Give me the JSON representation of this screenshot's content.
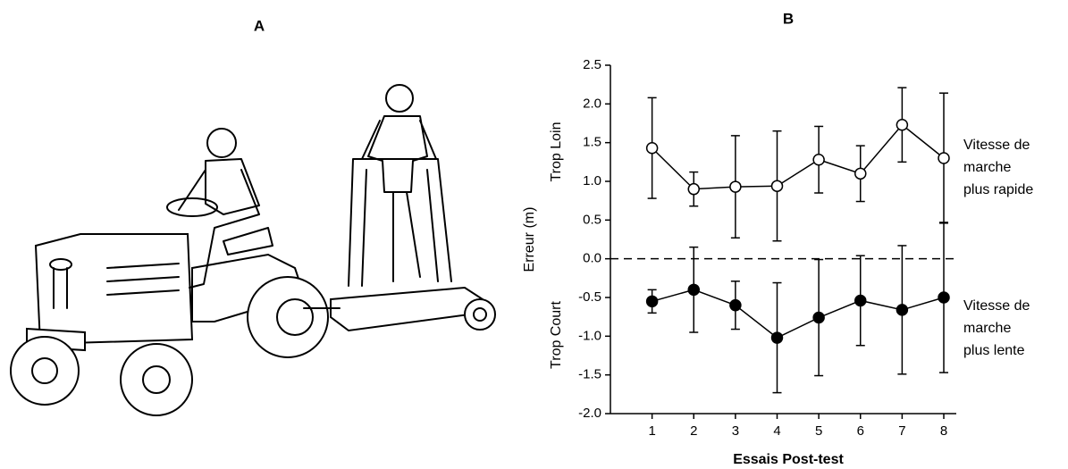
{
  "panels": [
    "A",
    "B"
  ],
  "chart_data": {
    "type": "errorbar-line",
    "x": [
      1,
      2,
      3,
      4,
      5,
      6,
      7,
      8
    ],
    "xlim": [
      0,
      8.3
    ],
    "xticks": [
      1,
      2,
      3,
      4,
      5,
      6,
      7,
      8
    ],
    "ylim": [
      -2,
      2.5
    ],
    "yticks": [
      2.5,
      {
        "value": 2,
        "label": "2.0"
      },
      1.5,
      {
        "value": 1,
        "label": "1.0"
      },
      0.5,
      {
        "value": 0,
        "label": "0.0"
      },
      -0.5,
      {
        "value": -1,
        "label": "-1.0"
      },
      -1.5,
      {
        "value": -2,
        "label": "-2.0"
      }
    ],
    "y_label": "Erreur (m)",
    "y_upper_label": "Trop Loin",
    "y_lower_label": "Trop Court",
    "x_label": "Essais Post-test",
    "zero_line": true,
    "series": [
      {
        "name": "Vitesse de marche plus rapide",
        "color": "#000000",
        "filled": false,
        "values": [
          1.43,
          0.9,
          0.93,
          0.94,
          1.28,
          1.1,
          1.73,
          1.3
        ],
        "errors": [
          0.65,
          0.22,
          0.66,
          0.71,
          0.43,
          0.36,
          0.48,
          0.84
        ]
      },
      {
        "name": "Vitesse de marche plus lente",
        "color": "#000000",
        "filled": true,
        "values": [
          -0.55,
          -0.4,
          -0.6,
          -1.02,
          -0.76,
          -0.54,
          -0.66,
          -0.5
        ],
        "errors": [
          0.15,
          0.55,
          0.31,
          0.71,
          0.75,
          0.58,
          0.83,
          0.97
        ]
      }
    ]
  }
}
